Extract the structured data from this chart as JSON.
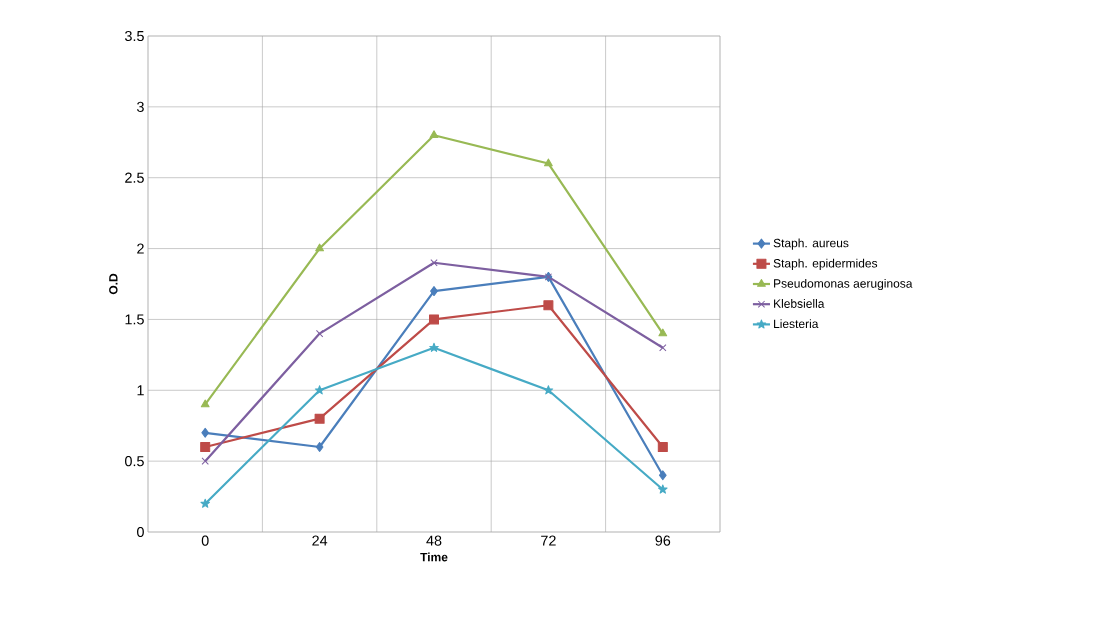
{
  "chart_data": {
    "type": "line",
    "xlabel": "Time",
    "ylabel": "O.D",
    "categories": [
      "0",
      "24",
      "48",
      "72",
      "96"
    ],
    "ylim": [
      0,
      3.5
    ],
    "yticks": [
      0,
      0.5,
      1,
      1.5,
      2,
      2.5,
      3,
      3.5
    ],
    "grid": true,
    "legend": "right",
    "line_style": "solid",
    "series": [
      {
        "name": "Staph. aureus",
        "color": "#4a7ebb",
        "marker": "diamond",
        "values": [
          0.7,
          0.6,
          1.7,
          1.8,
          0.4
        ]
      },
      {
        "name": "Staph. epidermides",
        "color": "#be4b48",
        "marker": "square",
        "values": [
          0.6,
          0.8,
          1.5,
          1.6,
          0.6
        ]
      },
      {
        "name": "Pseudomonas aeruginosa",
        "color": "#98b954",
        "marker": "triangle",
        "values": [
          0.9,
          2.0,
          2.8,
          2.6,
          1.4
        ]
      },
      {
        "name": "Klebsiella",
        "color": "#7d5fa0",
        "marker": "cross",
        "values": [
          0.5,
          1.4,
          1.9,
          1.8,
          1.3
        ]
      },
      {
        "name": "Liesteria",
        "color": "#46aac5",
        "marker": "star",
        "values": [
          0.2,
          1.0,
          1.3,
          1.0,
          0.3
        ]
      }
    ]
  }
}
